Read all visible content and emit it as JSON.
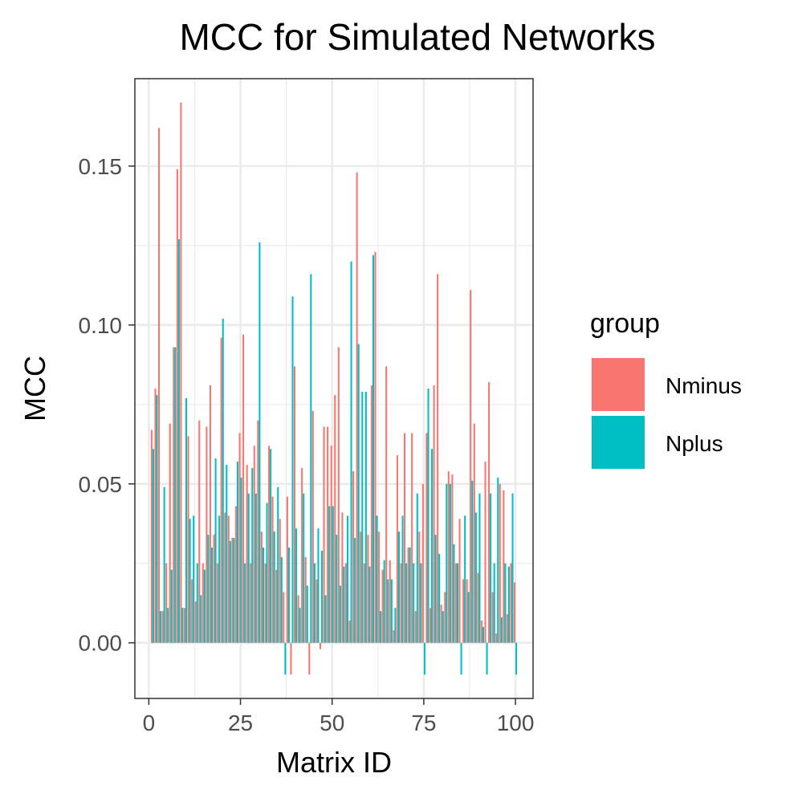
{
  "chart_data": {
    "type": "bar",
    "title": "MCC for Simulated Networks",
    "xlabel": "Matrix ID",
    "ylabel": "MCC",
    "xlim": [
      -3.8,
      104.8
    ],
    "ylim": [
      -0.0175,
      0.1775
    ],
    "x_ticks": [
      0,
      25,
      50,
      75,
      100
    ],
    "x_tick_labels": [
      "0",
      "25",
      "50",
      "75",
      "100"
    ],
    "y_ticks": [
      0.0,
      0.05,
      0.1,
      0.15
    ],
    "y_tick_labels": [
      "0.00",
      "0.05",
      "0.10",
      "0.15"
    ],
    "grid": true,
    "legend": {
      "title": "group",
      "position": "right",
      "entries": [
        {
          "label": "Nminus",
          "color": "#F8766D"
        },
        {
          "label": "Nplus",
          "color": "#00BFC4"
        }
      ]
    },
    "series": [
      {
        "name": "Nminus",
        "color": "#F8766D",
        "x": [
          1,
          2,
          3,
          4,
          5,
          6,
          7,
          8,
          9,
          10,
          11,
          12,
          13,
          14,
          15,
          16,
          17,
          18,
          19,
          20,
          21,
          22,
          23,
          24,
          25,
          26,
          27,
          28,
          29,
          30,
          31,
          32,
          33,
          34,
          35,
          36,
          37,
          38,
          39,
          40,
          41,
          42,
          43,
          44,
          45,
          46,
          47,
          48,
          49,
          50,
          51,
          52,
          53,
          54,
          55,
          56,
          57,
          58,
          59,
          60,
          61,
          62,
          63,
          64,
          65,
          66,
          67,
          68,
          69,
          70,
          71,
          72,
          73,
          74,
          75,
          76,
          77,
          78,
          79,
          80,
          81,
          82,
          83,
          84,
          85,
          86,
          87,
          88,
          89,
          90,
          91,
          92,
          93,
          94,
          95,
          96,
          97,
          98,
          99,
          100
        ],
        "values": [
          0.067,
          0.08,
          0.162,
          0.01,
          0.025,
          0.069,
          0.093,
          0.149,
          0.17,
          0.011,
          0.065,
          0.02,
          0.013,
          0.07,
          0.025,
          0.068,
          0.081,
          0.034,
          0.025,
          0.096,
          0.041,
          0.04,
          0.033,
          0.043,
          0.066,
          0.097,
          0.056,
          0.025,
          0.062,
          0.07,
          0.035,
          0.025,
          0.062,
          0.046,
          0.023,
          0.039,
          0.016,
          0.046,
          -0.01,
          0.087,
          0.015,
          0.055,
          0.027,
          -0.01,
          0.073,
          0.02,
          -0.002,
          0.068,
          0.068,
          0.062,
          0.078,
          0.093,
          0.041,
          0.025,
          0.007,
          0.054,
          0.148,
          0.035,
          0.025,
          0.034,
          0.081,
          0.123,
          0.035,
          0.023,
          0.087,
          0.026,
          0.004,
          0.059,
          0.025,
          0.066,
          0.03,
          0.066,
          0.01,
          0.035,
          0.05,
          0.066,
          0.011,
          0.081,
          0.116,
          0.012,
          0.016,
          0.054,
          0.053,
          0.025,
          0.039,
          0.02,
          0.02,
          0.111,
          0.069,
          0.022,
          0.007,
          0.057,
          0.082,
          0.016,
          0.003,
          0.05,
          0.048,
          0.009,
          0.025,
          0.019
        ]
      },
      {
        "name": "Nplus",
        "color": "#00BFC4",
        "x": [
          1,
          2,
          3,
          4,
          5,
          6,
          7,
          8,
          9,
          10,
          11,
          12,
          13,
          14,
          15,
          16,
          17,
          18,
          19,
          20,
          21,
          22,
          23,
          24,
          25,
          26,
          27,
          28,
          29,
          30,
          31,
          32,
          33,
          34,
          35,
          36,
          37,
          38,
          39,
          40,
          41,
          42,
          43,
          44,
          45,
          46,
          47,
          48,
          49,
          50,
          51,
          52,
          53,
          54,
          55,
          56,
          57,
          58,
          59,
          60,
          61,
          62,
          63,
          64,
          65,
          66,
          67,
          68,
          69,
          70,
          71,
          72,
          73,
          74,
          75,
          76,
          77,
          78,
          79,
          80,
          81,
          82,
          83,
          84,
          85,
          86,
          87,
          88,
          89,
          90,
          91,
          92,
          93,
          94,
          95,
          96,
          97,
          98,
          99,
          100
        ],
        "values": [
          0.061,
          0.078,
          0.01,
          0.049,
          0.011,
          0.023,
          0.093,
          0.127,
          0.011,
          0.077,
          0.039,
          0.04,
          0.025,
          0.015,
          0.023,
          0.034,
          0.03,
          0.058,
          0.04,
          0.102,
          0.056,
          0.032,
          0.033,
          0.057,
          0.052,
          0.025,
          0.047,
          0.055,
          0.047,
          0.126,
          0.03,
          0.044,
          0.061,
          0.035,
          0.049,
          0.027,
          -0.01,
          0.03,
          0.109,
          0.036,
          0.011,
          0.047,
          0.018,
          0.116,
          0.025,
          0.036,
          0.029,
          0.015,
          0.043,
          0.043,
          0.034,
          0.018,
          0.024,
          0.04,
          0.12,
          0.033,
          0.094,
          0.079,
          0.079,
          0.024,
          0.122,
          0.04,
          0.01,
          0.026,
          0.02,
          0.02,
          0.011,
          0.035,
          0.04,
          0.025,
          0.03,
          0.025,
          0.047,
          0.025,
          -0.01,
          0.08,
          0.061,
          0.034,
          0.028,
          0.01,
          0.05,
          0.05,
          0.031,
          0.025,
          -0.01,
          0.04,
          0.016,
          0.051,
          0.041,
          0.047,
          0.005,
          -0.01,
          0.047,
          0.025,
          0.052,
          0.008,
          0.025,
          0.024,
          0.047,
          -0.01
        ]
      }
    ]
  }
}
